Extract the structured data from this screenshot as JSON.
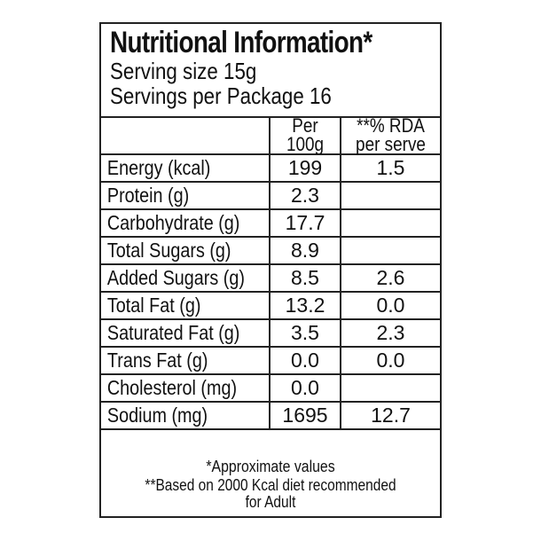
{
  "header": {
    "title": "Nutritional Information*",
    "serving_size": "Serving size 15g",
    "servings_per_package": "Servings per Package 16"
  },
  "columns": {
    "per_100g_line1": "Per",
    "per_100g_line2": "100g",
    "rda_line1": "**% RDA",
    "rda_line2": "per serve"
  },
  "rows": [
    {
      "label": "Energy (kcal)",
      "per_100g": "199",
      "rda": "1.5"
    },
    {
      "label": "Protein (g)",
      "per_100g": "2.3",
      "rda": ""
    },
    {
      "label": "Carbohydrate (g)",
      "per_100g": "17.7",
      "rda": ""
    },
    {
      "label": "Total Sugars (g)",
      "per_100g": "8.9",
      "rda": ""
    },
    {
      "label": "Added Sugars (g)",
      "per_100g": "8.5",
      "rda": "2.6"
    },
    {
      "label": "Total Fat (g)",
      "per_100g": "13.2",
      "rda": "0.0"
    },
    {
      "label": "Saturated Fat (g)",
      "per_100g": "3.5",
      "rda": "2.3"
    },
    {
      "label": "Trans Fat (g)",
      "per_100g": "0.0",
      "rda": "0.0"
    },
    {
      "label": "Cholesterol (mg)",
      "per_100g": "0.0",
      "rda": ""
    },
    {
      "label": "Sodium (mg)",
      "per_100g": "1695",
      "rda": "12.7"
    }
  ],
  "footer": {
    "note1": "*Approximate values",
    "note2_line1": "**Based on 2000 Kcal diet recommended",
    "note2_line2": "for Adult"
  }
}
